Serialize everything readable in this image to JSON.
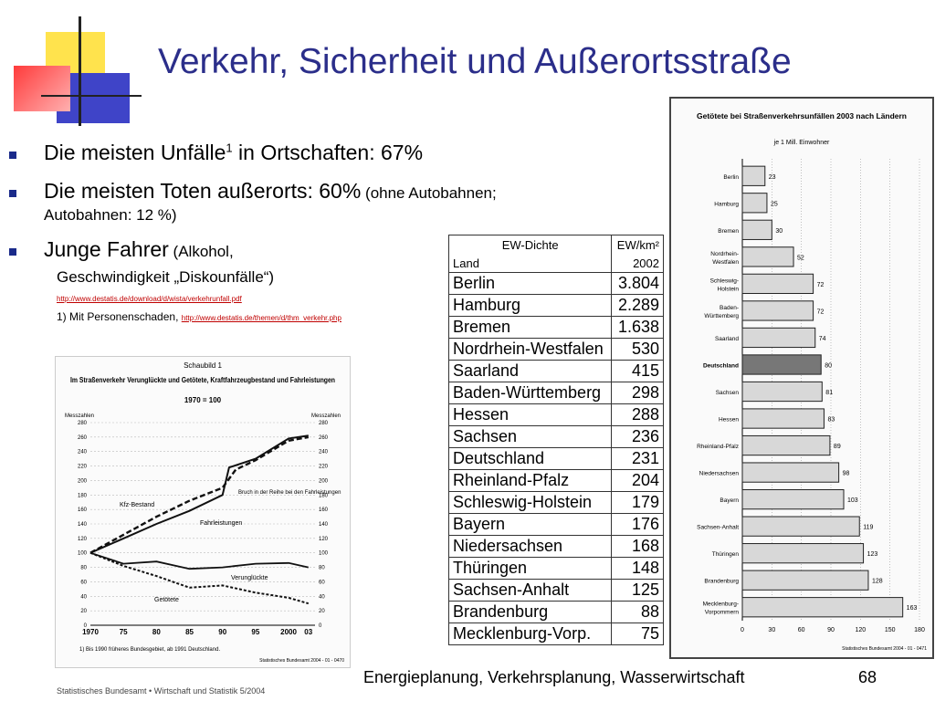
{
  "slide": {
    "title": "Verkehr, Sicherheit und Außerortsstraße",
    "footer": "Energieplanung, Verkehrsplanung, Wasserwirtschaft",
    "page_number": "68",
    "accent_colors": {
      "title": "#2b2e8a",
      "deco_yellow": "#ffe34d",
      "deco_blue": "#3f44c8",
      "deco_red": "#ff4a4a",
      "link": "#c00000"
    }
  },
  "bullets": [
    {
      "main": "Die meisten Unfälle",
      "sup": "1",
      "rest": " in Ortschaften: 67%"
    },
    {
      "main": "Die meisten Toten außerorts: 60%",
      "small": " (ohne Autobahnen;",
      "line2": "Autobahnen: 12 %)"
    },
    {
      "main": "Junge Fahrer",
      "small": " (Alkohol,",
      "line2": "Geschwindigkeit „Diskounfälle“)"
    }
  ],
  "links": {
    "destatis_unfall": "http://www.destatis.de/download/d/wista/verkehrunfall.pdf",
    "footnote_text": "1) Mit Personenschaden, ",
    "destatis_thm": "http://www.destatis.de/themen/d/thm_verkehr.php"
  },
  "table": {
    "header_top": [
      "EW-Dichte",
      "EW/km²"
    ],
    "header_bottom": [
      "Land",
      "2002"
    ],
    "rows": [
      [
        "Berlin",
        "3.804"
      ],
      [
        "Hamburg",
        "2.289"
      ],
      [
        "Bremen",
        "1.638"
      ],
      [
        "Nordrhein-Westfalen",
        "530"
      ],
      [
        "Saarland",
        "415"
      ],
      [
        "Baden-Württemberg",
        "298"
      ],
      [
        "Hessen",
        "288"
      ],
      [
        "Sachsen",
        "236"
      ],
      [
        "Deutschland",
        "231"
      ],
      [
        "Rheinland-Pfalz",
        "204"
      ],
      [
        "Schleswig-Holstein",
        "179"
      ],
      [
        "Bayern",
        "176"
      ],
      [
        "Niedersachsen",
        "168"
      ],
      [
        "Thüringen",
        "148"
      ],
      [
        "Sachsen-Anhalt",
        "125"
      ],
      [
        "Brandenburg",
        "88"
      ],
      [
        "Mecklenburg-Vorp.",
        "75"
      ]
    ]
  },
  "chart_data": [
    {
      "type": "line",
      "label_top": "Schaubild 1",
      "title": "Im Straßenverkehr Verunglückte und Getötete, Kraftfahrzeugbestand und Fahrleistungen",
      "subtitle": "1970 = 100",
      "ylabel_left": "Messzahlen",
      "ylabel_right": "Messzahlen",
      "ylim": [
        0,
        280
      ],
      "yticks": [
        0,
        20,
        40,
        60,
        80,
        100,
        120,
        140,
        160,
        180,
        200,
        220,
        240,
        260,
        280
      ],
      "xticks": [
        "1970",
        "75",
        "80",
        "85",
        "90",
        "95",
        "2000",
        "03"
      ],
      "annotation": "Bruch in der Reihe bei den Fahrleistungen",
      "footnote": "1) Bis 1990 früheres Bundesgebiet, ab 1991 Deutschland.",
      "source": "Statistisches Bundesamt 2004 - 01 - 0470",
      "series": [
        {
          "name": "Kfz-Bestand",
          "x": [
            1970,
            1975,
            1980,
            1985,
            1990,
            1992,
            1995,
            2000,
            2003
          ],
          "y": [
            100,
            125,
            150,
            172,
            190,
            215,
            228,
            255,
            260
          ]
        },
        {
          "name": "Fahrleistungen",
          "x": [
            1970,
            1975,
            1980,
            1985,
            1990,
            1991,
            1995,
            2000,
            2003
          ],
          "y": [
            100,
            120,
            140,
            158,
            180,
            218,
            230,
            258,
            262
          ]
        },
        {
          "name": "Verunglückte",
          "x": [
            1970,
            1975,
            1980,
            1985,
            1990,
            1995,
            2000,
            2003
          ],
          "y": [
            100,
            85,
            88,
            78,
            80,
            85,
            86,
            80
          ]
        },
        {
          "name": "Getötete",
          "x": [
            1970,
            1975,
            1980,
            1985,
            1990,
            1995,
            2000,
            2003
          ],
          "y": [
            100,
            82,
            68,
            52,
            55,
            45,
            38,
            30
          ]
        }
      ]
    },
    {
      "type": "bar",
      "title": "Getötete bei Straßenverkehrsunfällen 2003 nach Ländern",
      "subtitle": "je 1 Mill. Einwohner",
      "categories": [
        "Berlin",
        "Hamburg",
        "Bremen",
        "Nordrhein-Westfalen",
        "Schleswig-Holstein",
        "Baden-Württemberg",
        "Saarland",
        "Deutschland",
        "Sachsen",
        "Hessen",
        "Rheinland-Pfalz",
        "Niedersachsen",
        "Bayern",
        "Sachsen-Anhalt",
        "Thüringen",
        "Brandenburg",
        "Mecklenburg-Vorpommern"
      ],
      "category_labels": [
        [
          "Berlin"
        ],
        [
          "Hamburg"
        ],
        [
          "Bremen"
        ],
        [
          "Nordrhein-",
          "Westfalen"
        ],
        [
          "Schleswig-",
          "Holstein"
        ],
        [
          "Baden-",
          "Württemberg"
        ],
        [
          "Saarland"
        ],
        [
          "Deutschland"
        ],
        [
          "Sachsen"
        ],
        [
          "Hessen"
        ],
        [
          "Rheinland-Pfalz"
        ],
        [
          "Niedersachsen"
        ],
        [
          "Bayern"
        ],
        [
          "Sachsen-Anhalt"
        ],
        [
          "Thüringen"
        ],
        [
          "Brandenburg"
        ],
        [
          "Mecklenburg-",
          "Vorpommern"
        ]
      ],
      "values": [
        23,
        25,
        30,
        52,
        72,
        72,
        74,
        80,
        81,
        83,
        89,
        98,
        103,
        119,
        123,
        128,
        163
      ],
      "highlight": "Deutschland",
      "xlim": [
        0,
        180
      ],
      "xticks": [
        0,
        30,
        60,
        90,
        120,
        150,
        180
      ],
      "source": "Statistisches Bundesamt 2004 - 01 - 0471"
    }
  ],
  "source_caption": "Statistisches Bundesamt • Wirtschaft und Statistik 5/2004"
}
